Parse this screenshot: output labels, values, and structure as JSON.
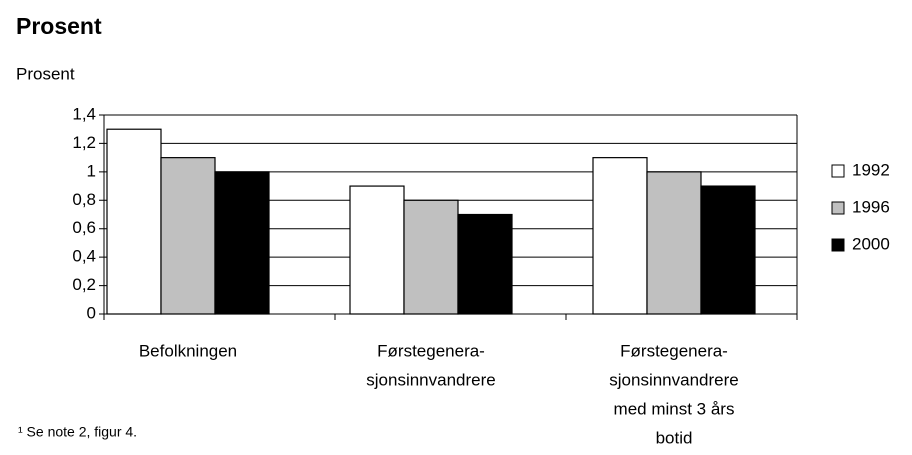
{
  "chart_data": {
    "type": "bar",
    "title": "Prosent",
    "y_label": "Prosent",
    "categories": [
      [
        "Befolkningen"
      ],
      [
        "Førstegenera-",
        "sjonsinnvandrere"
      ],
      [
        "Førstegenera-",
        "sjonsinnvandrere",
        "med minst 3 års",
        "botid"
      ]
    ],
    "series": [
      {
        "name": "1992",
        "color": "#ffffff",
        "values": [
          1.3,
          0.9,
          1.1
        ]
      },
      {
        "name": "1996",
        "color": "#c0c0c0",
        "values": [
          1.1,
          0.8,
          1.0
        ]
      },
      {
        "name": "2000",
        "color": "#000000",
        "values": [
          1.0,
          0.7,
          0.9
        ]
      }
    ],
    "ylim": [
      0,
      1.4
    ],
    "yticks": [
      0,
      {
        "value": 0.2,
        "label": "0,2"
      },
      {
        "value": 0.4,
        "label": "0,4"
      },
      {
        "value": 0.6,
        "label": "0,6"
      },
      {
        "value": 0.8,
        "label": "0,8"
      },
      1,
      {
        "value": 1.2,
        "label": "1,2"
      },
      {
        "value": 1.4,
        "label": "1,4"
      }
    ],
    "grid": true,
    "legend": "right",
    "footnote": "¹ Se note 2, figur 4."
  }
}
